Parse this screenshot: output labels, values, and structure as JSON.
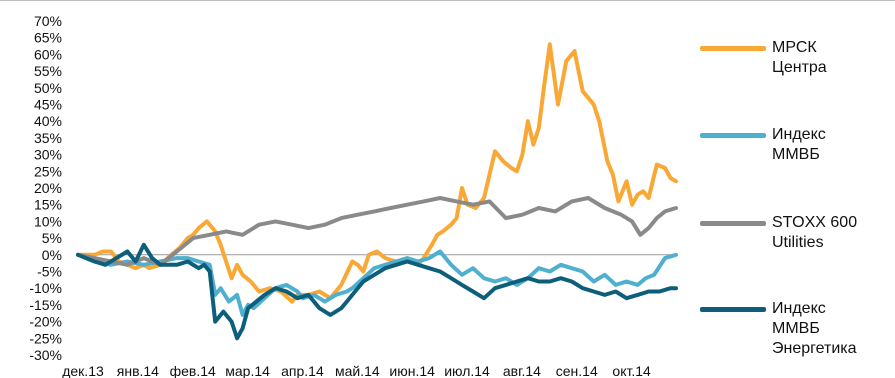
{
  "chart_data": {
    "type": "line",
    "title": "",
    "xlabel": "",
    "ylabel": "",
    "ylim": [
      -30,
      70
    ],
    "y_ticks": [
      70,
      65,
      60,
      55,
      50,
      45,
      40,
      35,
      30,
      25,
      20,
      15,
      10,
      5,
      0,
      -5,
      -10,
      -15,
      -20,
      -25,
      -30
    ],
    "y_tick_labels": [
      "70%",
      "65%",
      "60%",
      "55%",
      "50%",
      "45%",
      "40%",
      "35%",
      "30%",
      "25%",
      "20%",
      "15%",
      "10%",
      "5%",
      "0%",
      "-5%",
      "-10%",
      "-15%",
      "-20%",
      "-25%",
      "-30%"
    ],
    "x_tick_labels": [
      "дек.13",
      "янв.14",
      "фев.14",
      "мар.14",
      "апр.14",
      "май.14",
      "июн.14",
      "июл.14",
      "авг.14",
      "сен.14",
      "окт.14"
    ],
    "x_range_months": [
      0,
      10.9
    ],
    "grid": false,
    "legend_position": "right",
    "series": [
      {
        "name_lines": [
          "МРСК",
          "Центра"
        ],
        "color": "#f9a735",
        "x": [
          0,
          0.3,
          0.45,
          0.6,
          0.75,
          0.9,
          1.05,
          1.2,
          1.3,
          1.5,
          1.7,
          1.85,
          2.0,
          2.1,
          2.2,
          2.35,
          2.5,
          2.6,
          2.7,
          2.8,
          2.9,
          3.0,
          3.15,
          3.3,
          3.5,
          3.7,
          3.9,
          4.0,
          4.2,
          4.4,
          4.6,
          4.8,
          5.0,
          5.1,
          5.2,
          5.3,
          5.45,
          5.6,
          5.8,
          6.0,
          6.1,
          6.2,
          6.3,
          6.45,
          6.55,
          6.65,
          6.8,
          6.9,
          7.0,
          7.1,
          7.25,
          7.4,
          7.5,
          7.6,
          7.75,
          7.9,
          8.0,
          8.1,
          8.2,
          8.3,
          8.4,
          8.5,
          8.6,
          8.75,
          8.9,
          9.05,
          9.2,
          9.3,
          9.4,
          9.5,
          9.65,
          9.75,
          9.85,
          10.0,
          10.1,
          10.2,
          10.3,
          10.4,
          10.55,
          10.7,
          10.8,
          10.9
        ],
        "y": [
          0,
          0,
          1,
          1,
          -2,
          -3,
          -4,
          -3,
          -4,
          -3,
          0,
          2,
          5,
          6,
          8,
          10,
          7,
          3,
          -2,
          -7,
          -3,
          -6,
          -8,
          -11,
          -10,
          -11,
          -14,
          -12,
          -12,
          -11,
          -13,
          -9,
          -2,
          -3,
          -5,
          0,
          1,
          -1,
          -2,
          -1,
          -2,
          -3,
          -1,
          3,
          6,
          7,
          9,
          11,
          20,
          15,
          14,
          17,
          24,
          31,
          28,
          26,
          25,
          30,
          40,
          33,
          38,
          51,
          63,
          45,
          58,
          61,
          49,
          47,
          45,
          40,
          28,
          24,
          16,
          22,
          15,
          18,
          19,
          17,
          27,
          26,
          23,
          22
        ]
      },
      {
        "name_lines": [
          "Индекс",
          "ММВБ"
        ],
        "color": "#4fafcf",
        "x": [
          0,
          0.3,
          0.6,
          0.9,
          1.2,
          1.5,
          1.8,
          2.0,
          2.2,
          2.4,
          2.5,
          2.6,
          2.75,
          2.9,
          3.0,
          3.1,
          3.2,
          3.4,
          3.6,
          3.8,
          4.0,
          4.1,
          4.3,
          4.5,
          4.7,
          4.9,
          5.0,
          5.2,
          5.4,
          5.6,
          5.8,
          6.0,
          6.2,
          6.4,
          6.6,
          6.8,
          7.0,
          7.2,
          7.4,
          7.6,
          7.8,
          8.0,
          8.2,
          8.4,
          8.6,
          8.8,
          9.0,
          9.2,
          9.4,
          9.6,
          9.8,
          10.0,
          10.2,
          10.35,
          10.5,
          10.7,
          10.9
        ],
        "y": [
          0,
          -2,
          -3,
          -2,
          -3,
          -2,
          -1,
          -1,
          -2,
          -3,
          -12,
          -10,
          -14,
          -12,
          -18,
          -15,
          -16,
          -13,
          -10,
          -9,
          -11,
          -13,
          -12,
          -14,
          -12,
          -11,
          -10,
          -7,
          -4,
          -3,
          -2,
          -1,
          -2,
          -1,
          1,
          -3,
          -6,
          -4,
          -7,
          -8,
          -7,
          -9,
          -7,
          -4,
          -5,
          -3,
          -4,
          -5,
          -8,
          -6,
          -9,
          -8,
          -9,
          -7,
          -6,
          -1,
          0
        ]
      },
      {
        "name_lines": [
          "STOXX 600",
          "Utilities"
        ],
        "color": "#8a8a8a",
        "x": [
          0,
          0.3,
          0.6,
          0.9,
          1.2,
          1.5,
          1.8,
          2.1,
          2.4,
          2.7,
          3.0,
          3.3,
          3.6,
          3.9,
          4.2,
          4.5,
          4.8,
          5.1,
          5.4,
          5.7,
          6.0,
          6.3,
          6.6,
          6.9,
          7.2,
          7.5,
          7.8,
          8.1,
          8.4,
          8.7,
          9.0,
          9.3,
          9.6,
          9.9,
          10.1,
          10.25,
          10.4,
          10.55,
          10.7,
          10.9
        ],
        "y": [
          0,
          -1,
          -2,
          -3,
          -1,
          -3,
          1,
          5,
          6,
          7,
          6,
          9,
          10,
          9,
          8,
          9,
          11,
          12,
          13,
          14,
          15,
          16,
          17,
          16,
          15,
          16,
          11,
          12,
          14,
          13,
          16,
          17,
          14,
          12,
          10,
          6,
          8,
          11,
          13,
          14
        ]
      },
      {
        "name_lines": [
          "Индекс",
          "ММВБ",
          "Энергетика"
        ],
        "color": "#0d5e7a",
        "x": [
          0,
          0.3,
          0.5,
          0.7,
          0.9,
          1.05,
          1.2,
          1.35,
          1.5,
          1.8,
          2.0,
          2.2,
          2.3,
          2.4,
          2.5,
          2.65,
          2.8,
          2.9,
          3.0,
          3.1,
          3.25,
          3.4,
          3.6,
          3.8,
          4.0,
          4.2,
          4.4,
          4.6,
          4.8,
          4.9,
          5.0,
          5.2,
          5.4,
          5.6,
          5.8,
          6.0,
          6.2,
          6.4,
          6.6,
          6.8,
          7.0,
          7.2,
          7.4,
          7.6,
          7.8,
          8.0,
          8.2,
          8.4,
          8.6,
          8.8,
          9.0,
          9.2,
          9.4,
          9.6,
          9.8,
          10.0,
          10.2,
          10.4,
          10.6,
          10.8,
          10.9
        ],
        "y": [
          0,
          -2,
          -3,
          -1,
          1,
          -2,
          3,
          -1,
          -3,
          -3,
          -2,
          -4,
          -3,
          -5,
          -20,
          -17,
          -20,
          -25,
          -22,
          -16,
          -14,
          -12,
          -10,
          -11,
          -13,
          -12,
          -16,
          -18,
          -16,
          -14,
          -12,
          -8,
          -6,
          -4,
          -3,
          -2,
          -3,
          -4,
          -5,
          -7,
          -9,
          -11,
          -13,
          -10,
          -9,
          -8,
          -7,
          -8,
          -8,
          -7,
          -8,
          -10,
          -11,
          -12,
          -11,
          -13,
          -12,
          -11,
          -11,
          -10,
          -10
        ]
      }
    ]
  }
}
